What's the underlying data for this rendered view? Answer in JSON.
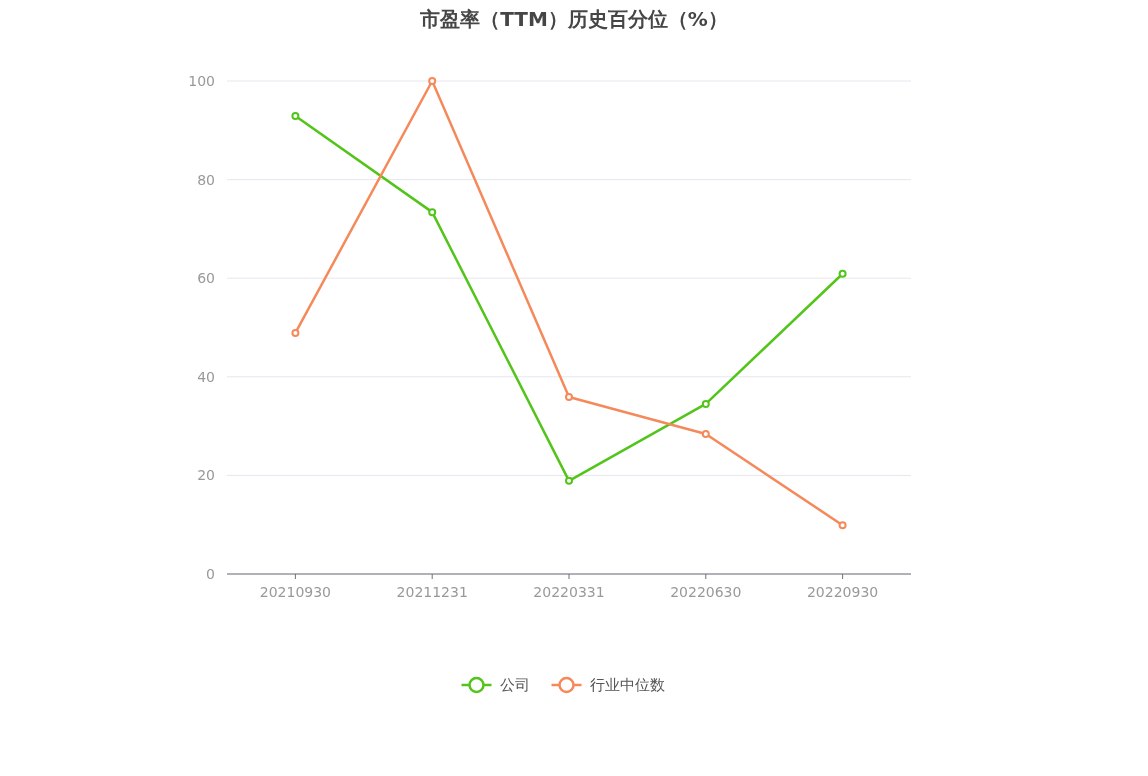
{
  "chart_data": {
    "type": "line",
    "title": "市盈率（TTM）历史百分位（%）",
    "categories": [
      "20210930",
      "20211231",
      "20220331",
      "20220630",
      "20220930"
    ],
    "series": [
      {
        "name": "公司",
        "color": "#52c41a",
        "values": [
          92.9,
          73.4,
          18.9,
          34.5,
          60.9
        ]
      },
      {
        "name": "行业中位数",
        "color": "#f5895a",
        "values": [
          48.9,
          100,
          35.9,
          28.4,
          9.9
        ]
      }
    ],
    "ylim": [
      0,
      100
    ],
    "yticks": [
      0,
      20,
      40,
      60,
      80,
      100
    ],
    "grid": "y",
    "legend": "bottom",
    "marker": "circle",
    "line_style": "solid"
  }
}
